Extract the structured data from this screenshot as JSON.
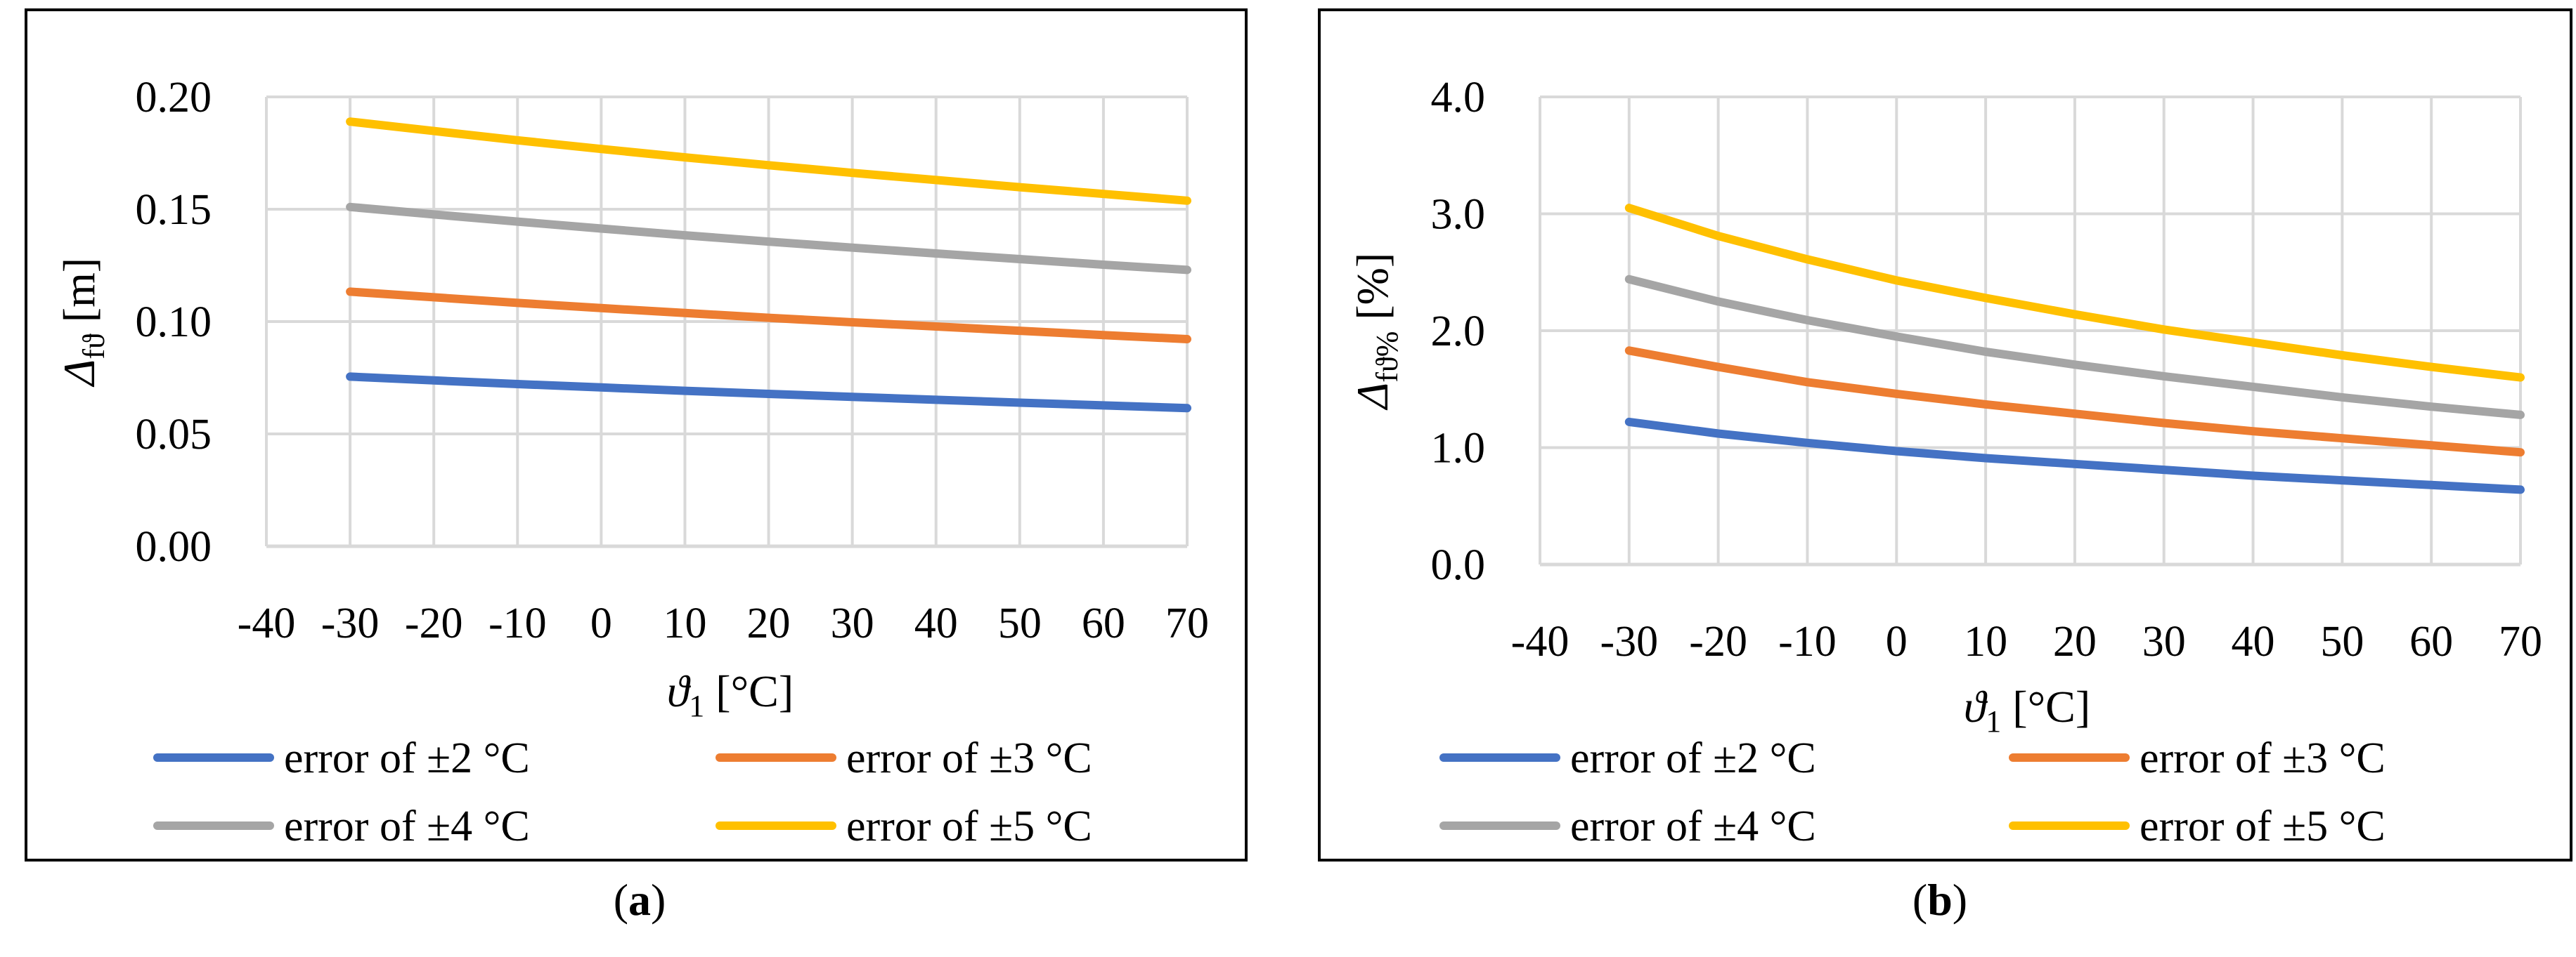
{
  "chart_data": [
    {
      "id": "a",
      "type": "line",
      "title": "",
      "xlabel_symbol": "ϑ",
      "xlabel_sub": "1",
      "xlabel_unit": " [°C]",
      "ylabel_symbol": "Δ",
      "ylabel_sub": "fϑ",
      "ylabel_unit": " [m]",
      "x_ticks": [
        "-40",
        "-30",
        "-20",
        "-10",
        "0",
        "10",
        "20",
        "30",
        "40",
        "50",
        "60",
        "70"
      ],
      "y_ticks": [
        "0.00",
        "0.05",
        "0.10",
        "0.15",
        "0.20"
      ],
      "xlim": [
        -40,
        70
      ],
      "ylim": [
        0,
        0.2
      ],
      "grid": true,
      "legend_position": "bottom",
      "x": [
        -30,
        -20,
        -10,
        0,
        10,
        20,
        30,
        40,
        50,
        60,
        70
      ],
      "series": [
        {
          "name": "error of ±2 °C",
          "color": "#4472C4",
          "values": [
            0.0755,
            0.0738,
            0.0722,
            0.0707,
            0.0692,
            0.0678,
            0.0665,
            0.0652,
            0.0639,
            0.0627,
            0.0615
          ]
        },
        {
          "name": "error of ±3 °C",
          "color": "#ED7D31",
          "values": [
            0.1133,
            0.1108,
            0.1083,
            0.106,
            0.1038,
            0.1017,
            0.0997,
            0.0978,
            0.0959,
            0.094,
            0.0922
          ]
        },
        {
          "name": "error of ±4 °C",
          "color": "#A5A5A5",
          "values": [
            0.151,
            0.1477,
            0.1445,
            0.1414,
            0.1384,
            0.1356,
            0.1329,
            0.1303,
            0.1278,
            0.1253,
            0.123
          ]
        },
        {
          "name": "error of ±5 °C",
          "color": "#FFC000",
          "values": [
            0.189,
            0.1848,
            0.1807,
            0.1768,
            0.1731,
            0.1696,
            0.1662,
            0.163,
            0.1598,
            0.1568,
            0.1538
          ]
        }
      ]
    },
    {
      "id": "b",
      "type": "line",
      "title": "",
      "xlabel_symbol": "ϑ",
      "xlabel_sub": "1",
      "xlabel_unit": " [°C]",
      "ylabel_symbol": "Δ",
      "ylabel_sub": "fϑ%",
      "ylabel_unit": " [%]",
      "x_ticks": [
        "-40",
        "-30",
        "-20",
        "-10",
        "0",
        "10",
        "20",
        "30",
        "40",
        "50",
        "60",
        "70"
      ],
      "y_ticks": [
        "0.0",
        "1.0",
        "2.0",
        "3.0",
        "4.0"
      ],
      "xlim": [
        -40,
        70
      ],
      "ylim": [
        0,
        4
      ],
      "grid": true,
      "legend_position": "bottom",
      "x": [
        -30,
        -20,
        -10,
        0,
        10,
        20,
        30,
        40,
        50,
        60,
        70
      ],
      "series": [
        {
          "name": "error of ±2 °C",
          "color": "#4472C4",
          "values": [
            1.22,
            1.12,
            1.04,
            0.97,
            0.91,
            0.86,
            0.81,
            0.76,
            0.72,
            0.68,
            0.64
          ]
        },
        {
          "name": "error of ±3 °C",
          "color": "#ED7D31",
          "values": [
            1.83,
            1.69,
            1.56,
            1.46,
            1.37,
            1.29,
            1.21,
            1.14,
            1.08,
            1.02,
            0.96
          ]
        },
        {
          "name": "error of ±4 °C",
          "color": "#A5A5A5",
          "values": [
            2.44,
            2.25,
            2.09,
            1.95,
            1.82,
            1.71,
            1.61,
            1.52,
            1.43,
            1.35,
            1.28
          ]
        },
        {
          "name": "error of ±5 °C",
          "color": "#FFC000",
          "values": [
            3.05,
            2.81,
            2.61,
            2.43,
            2.28,
            2.14,
            2.01,
            1.9,
            1.79,
            1.69,
            1.6
          ]
        }
      ]
    }
  ],
  "captions": {
    "a": "a",
    "b": "b"
  }
}
